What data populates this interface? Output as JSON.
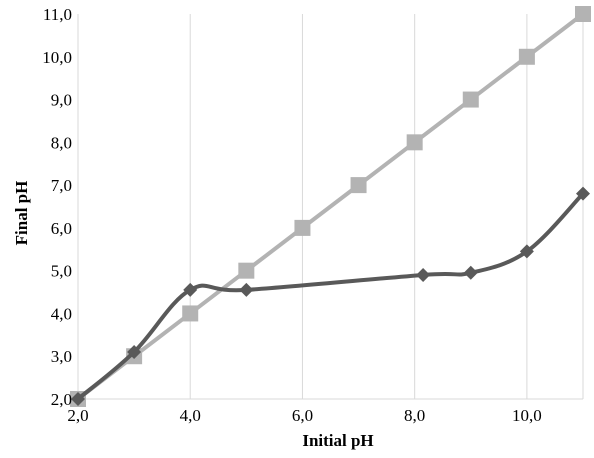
{
  "chart_data": {
    "type": "line",
    "title": "",
    "xlabel": "Initial pH",
    "ylabel": "Final pH",
    "xlim": [
      2,
      11
    ],
    "ylim": [
      2,
      11
    ],
    "x_ticks": [
      2,
      4,
      6,
      8,
      10
    ],
    "x_tick_labels": [
      "2,0",
      "4,0",
      "6,0",
      "8,0",
      "10,0"
    ],
    "y_ticks": [
      2,
      3,
      4,
      5,
      6,
      7,
      8,
      9,
      10,
      11
    ],
    "y_tick_labels": [
      "2,0",
      "3,0",
      "4,0",
      "5,0",
      "6,0",
      "7,0",
      "8,0",
      "9,0",
      "10,0",
      "11,0"
    ],
    "grid": "vertical",
    "legend": "none",
    "series": [
      {
        "color": "#b3b3b3",
        "marker": "square",
        "smooth": false,
        "points": [
          [
            2,
            2
          ],
          [
            3,
            3
          ],
          [
            4,
            4
          ],
          [
            5,
            5
          ],
          [
            6,
            6
          ],
          [
            7,
            7
          ],
          [
            8,
            8
          ],
          [
            9,
            9
          ],
          [
            10,
            10
          ],
          [
            11,
            11
          ]
        ]
      },
      {
        "color": "#595959",
        "marker": "diamond",
        "smooth": true,
        "points": [
          [
            2,
            2
          ],
          [
            3,
            3.1
          ],
          [
            4,
            4.55
          ],
          [
            5,
            4.55
          ],
          [
            8.15,
            4.9
          ],
          [
            9,
            4.95
          ],
          [
            10,
            5.45
          ],
          [
            11,
            6.8
          ]
        ]
      }
    ]
  }
}
